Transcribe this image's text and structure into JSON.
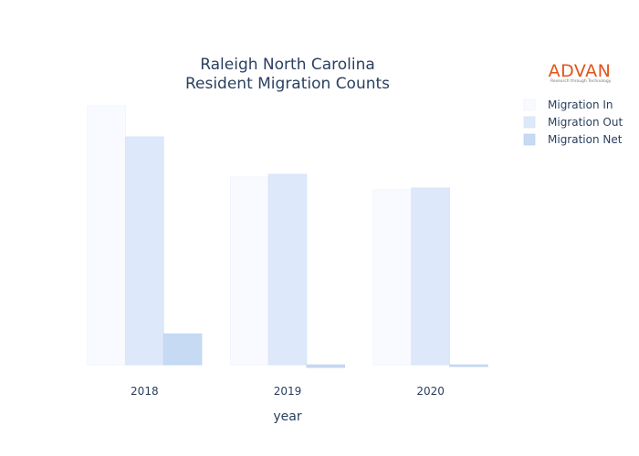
{
  "logo": {
    "name": "ADVAN",
    "tagline": "Research through Technology",
    "color": "#e5531a"
  },
  "chart_data": {
    "type": "bar",
    "title": [
      "Raleigh North Carolina",
      "Resident Migration Counts"
    ],
    "xlabel": "year",
    "ylabel": "",
    "categories": [
      "2018",
      "2019",
      "2020"
    ],
    "series": [
      {
        "name": "Migration In",
        "color": "#f8faff",
        "stroke": "#eef2fb",
        "values": [
          14200,
          10300,
          9600
        ]
      },
      {
        "name": "Migration Out",
        "color": "#dde8fa",
        "stroke": "#d4e1f7",
        "values": [
          12500,
          10450,
          9700
        ]
      },
      {
        "name": "Migration Net",
        "color": "#c7daf3",
        "stroke": "#bdd2ef",
        "values": [
          1700,
          -150,
          -100
        ]
      }
    ],
    "ylim": [
      -200,
      14400
    ],
    "grid": false,
    "y_tick_labels_visible": false,
    "legend_position": "top-right"
  }
}
